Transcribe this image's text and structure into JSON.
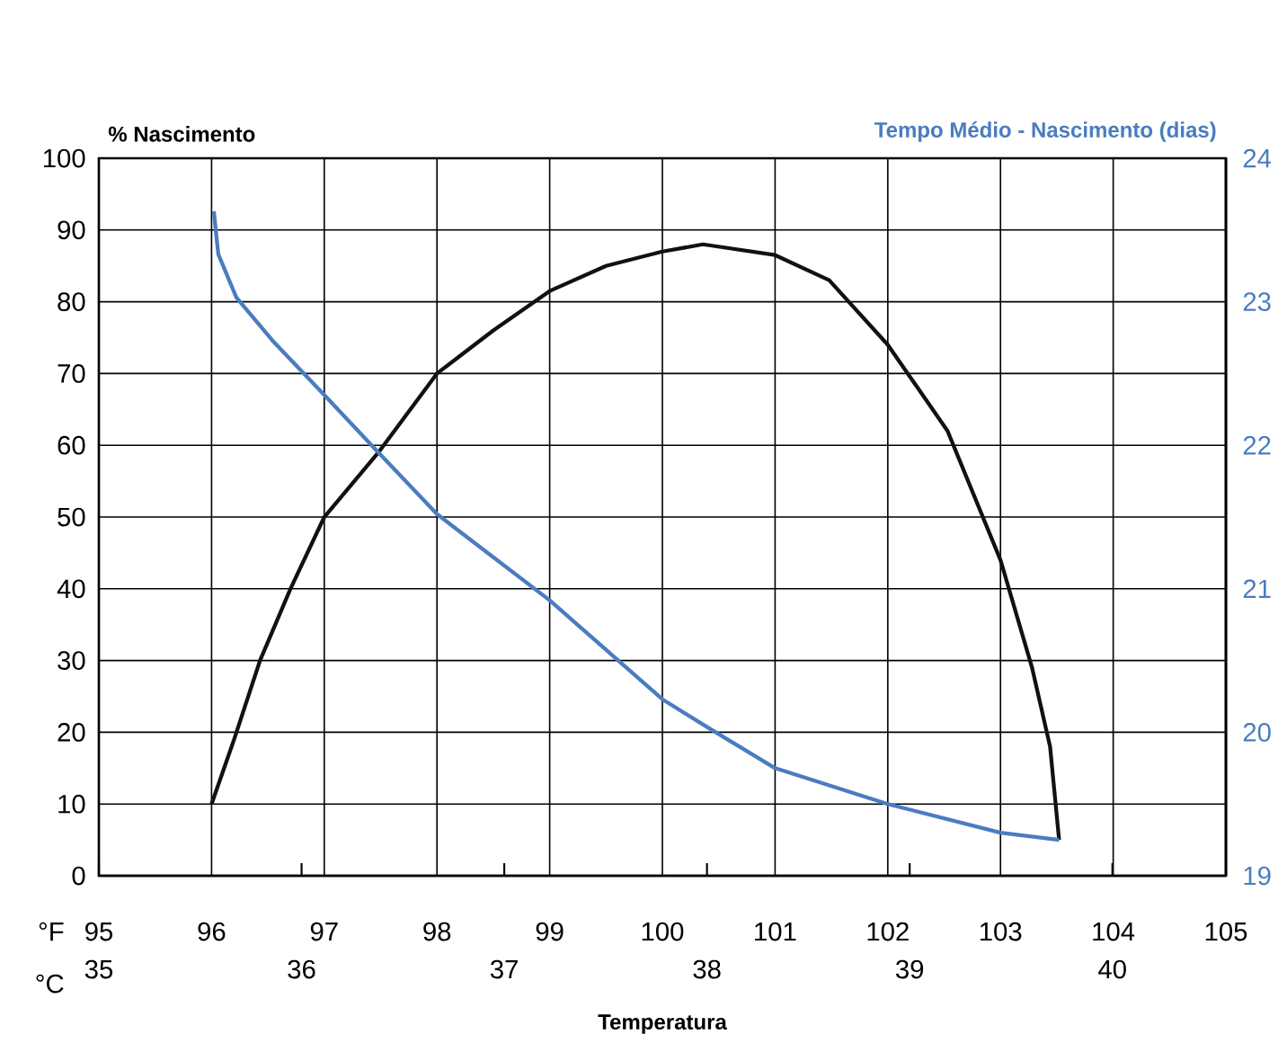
{
  "chart_data": {
    "type": "line",
    "xlabel": "Temperatura",
    "ylabel": "% Nascimento",
    "y2label": "Tempo Médio - Nascimento (dias)",
    "xlim": [
      95,
      105
    ],
    "xticks": [
      95,
      96,
      97,
      98,
      99,
      100,
      101,
      102,
      103,
      104,
      105
    ],
    "x2lim": [
      35,
      40.56
    ],
    "x2ticks": [
      35,
      36,
      37,
      38,
      39,
      40
    ],
    "ylim": [
      0,
      100
    ],
    "yticks": [
      0,
      10,
      20,
      30,
      40,
      50,
      60,
      70,
      80,
      90,
      100
    ],
    "y2lim": [
      19,
      24
    ],
    "y2ticks": [
      19,
      20,
      21,
      22,
      23,
      24
    ],
    "grid": true,
    "annotations": [
      "°F",
      "°C"
    ],
    "series": [
      {
        "color": "#111111",
        "x": [
          96.0,
          96.2,
          96.43,
          96.7,
          97,
          97.48,
          98,
          98.5,
          99,
          99.5,
          100,
          100.36,
          101,
          101.48,
          102,
          102.53,
          103,
          103.28,
          103.44,
          103.52
        ],
        "values": [
          10,
          19,
          30,
          40,
          50,
          59,
          70,
          76,
          81.5,
          85,
          87,
          88,
          86.5,
          83,
          74,
          62,
          44,
          29,
          18,
          5
        ]
      },
      {
        "color": "#4a7cc0",
        "axis": "y2",
        "x": [
          96.02,
          96.06,
          96.22,
          96.54,
          97,
          97.48,
          98,
          99,
          100,
          100.41,
          101,
          102,
          103,
          103.52
        ],
        "values": [
          23.63,
          23.33,
          23.03,
          22.73,
          22.35,
          21.95,
          21.52,
          20.92,
          20.23,
          20.03,
          19.75,
          19.5,
          19.3,
          19.25
        ]
      }
    ]
  }
}
